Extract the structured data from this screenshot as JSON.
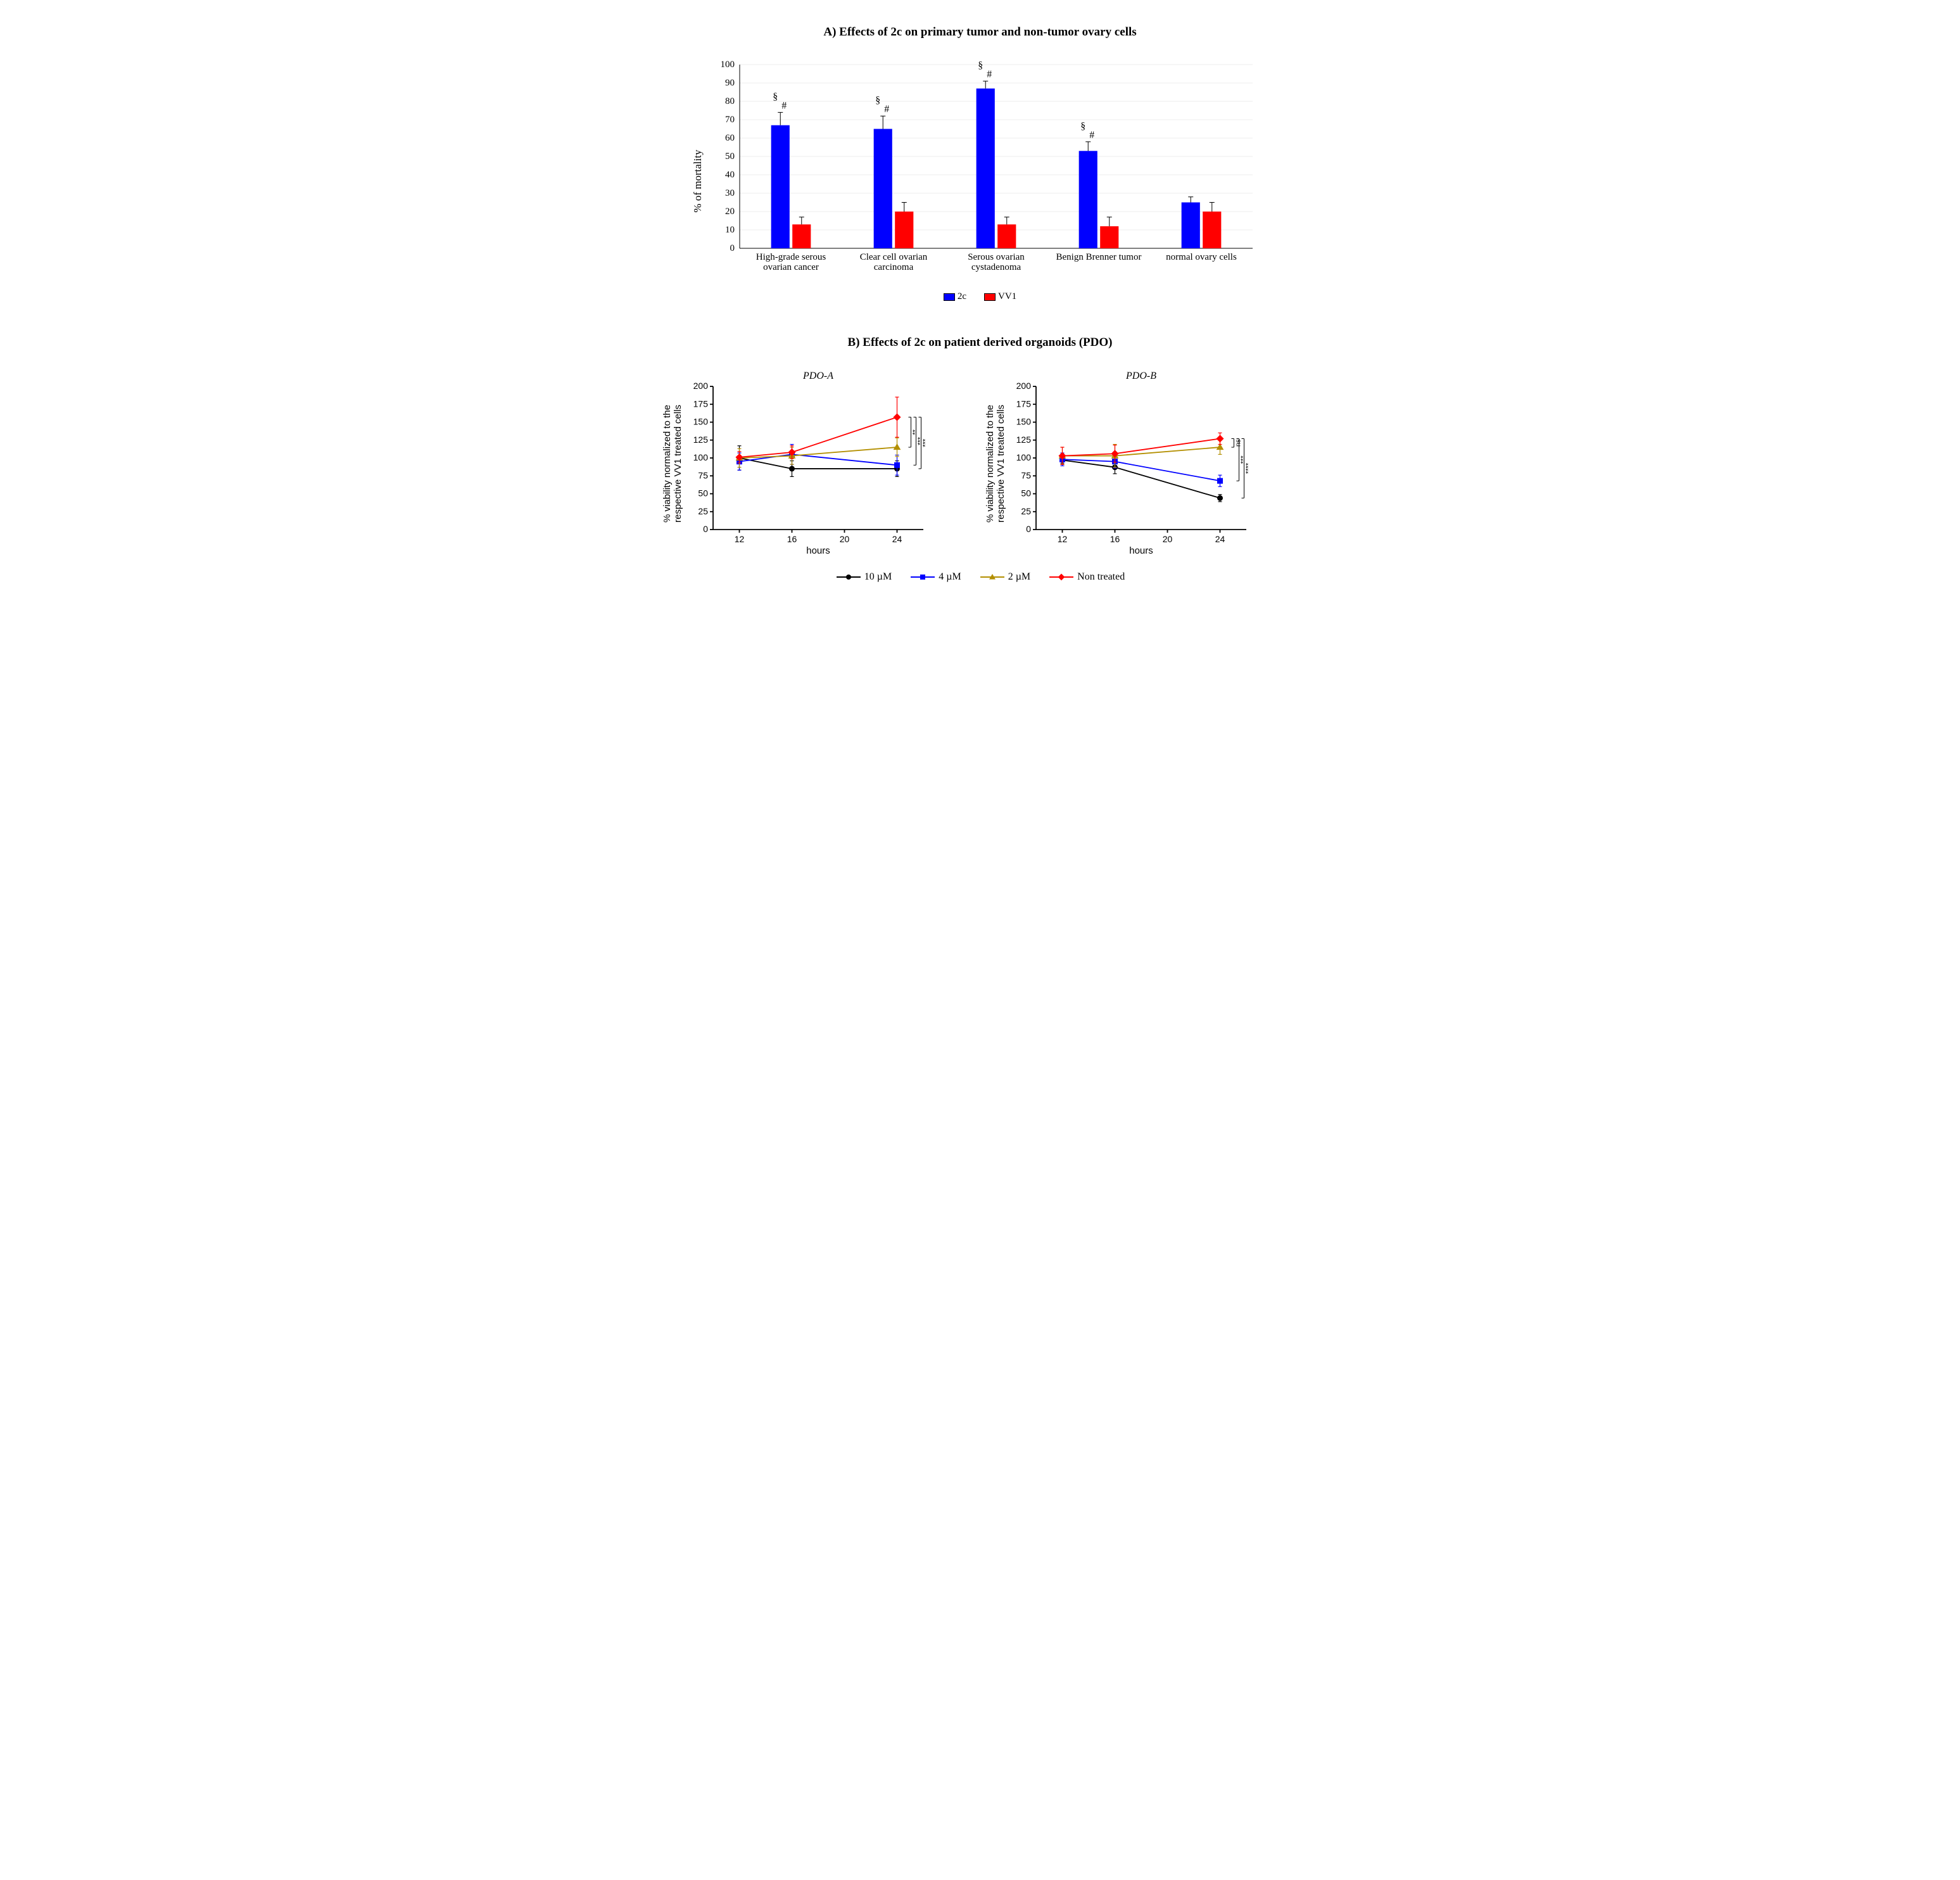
{
  "panelA": {
    "title": "A) Effects of 2c on primary tumor and non-tumor ovary cells",
    "title_fontsize": 19,
    "type": "bar",
    "ylabel": "% of mortality",
    "label_fontsize": 17,
    "tick_fontsize": 15,
    "category_fontsize": 15,
    "ylim": [
      0,
      100
    ],
    "ytick_step": 10,
    "background_color": "#ffffff",
    "grid_color": "#d9d9d9",
    "grid_on": true,
    "bar_width": 0.55,
    "categories": [
      "High-grade serous\novarian cancer",
      "Clear cell ovarian\ncarcinoma",
      "Serous ovarian\ncystadenoma",
      "Benign Brenner tumor",
      "normal ovary cells"
    ],
    "series": [
      {
        "name": "2c",
        "color": "#0000ff",
        "values": [
          67,
          65,
          87,
          53,
          25
        ],
        "errors": [
          7,
          7,
          4,
          5,
          3
        ],
        "annotations": [
          "§ #",
          "§ #",
          "§ #",
          "§ #",
          ""
        ]
      },
      {
        "name": "VV1",
        "color": "#ff0000",
        "values": [
          13,
          20,
          13,
          12,
          20
        ],
        "errors": [
          4,
          5,
          4,
          5,
          5
        ],
        "annotations": [
          "",
          "",
          "",
          "",
          ""
        ]
      }
    ],
    "legend_position": "bottom"
  },
  "panelB": {
    "title": "B) Effects of 2c on patient derived organoids (PDO)",
    "title_fontsize": 19,
    "type": "line",
    "ylabel": "% viability normalized to the\nrespective VV1 treated cells",
    "xlabel": "hours",
    "label_fontsize": 15,
    "tick_fontsize": 14,
    "ylim": [
      0,
      200
    ],
    "ytick_step": 25,
    "xlim": [
      10,
      26
    ],
    "xticks": [
      12,
      16,
      20,
      24
    ],
    "axis_color": "#000000",
    "axis_width": 1.8,
    "line_width": 1.8,
    "marker_size": 6,
    "subplots": [
      {
        "name": "PDO-A",
        "series": [
          {
            "name": "10 µM",
            "color": "#000000",
            "marker": "circle",
            "x": [
              12,
              16,
              24
            ],
            "y": [
              100,
              85,
              85
            ],
            "err": [
              17,
              11,
              11
            ]
          },
          {
            "name": "4 µM",
            "color": "#0000ff",
            "marker": "square",
            "x": [
              12,
              16,
              24
            ],
            "y": [
              95,
              105,
              90
            ],
            "err": [
              12,
              14,
              14
            ]
          },
          {
            "name": "2 µM",
            "color": "#b38f00",
            "marker": "triangle",
            "x": [
              12,
              16,
              24
            ],
            "y": [
              100,
              103,
              115
            ],
            "err": [
              13,
              12,
              13
            ]
          },
          {
            "name": "Non treated",
            "color": "#ff0000",
            "marker": "diamond",
            "x": [
              12,
              16,
              24
            ],
            "y": [
              101,
              108,
              157
            ],
            "err": [
              8,
              9,
              28
            ]
          }
        ],
        "sig_labels": [
          "**",
          "***",
          "***"
        ]
      },
      {
        "name": "PDO-B",
        "series": [
          {
            "name": "10 µM",
            "color": "#000000",
            "marker": "circle",
            "x": [
              12,
              16,
              24
            ],
            "y": [
              97,
              87,
              44
            ],
            "err": [
              5,
              9,
              5
            ]
          },
          {
            "name": "4 µM",
            "color": "#0000ff",
            "marker": "square",
            "x": [
              12,
              16,
              24
            ],
            "y": [
              98,
              95,
              68
            ],
            "err": [
              9,
              9,
              8
            ]
          },
          {
            "name": "2 µM",
            "color": "#b38f00",
            "marker": "triangle",
            "x": [
              12,
              16,
              24
            ],
            "y": [
              103,
              103,
              115
            ],
            "err": [
              12,
              16,
              10
            ]
          },
          {
            "name": "Non treated",
            "color": "#ff0000",
            "marker": "diamond",
            "x": [
              12,
              16,
              24
            ],
            "y": [
              103,
              106,
              127
            ],
            "err": [
              12,
              12,
              8
            ]
          }
        ],
        "sig_labels": [
          "ns",
          "***",
          "****"
        ]
      }
    ],
    "legend": [
      {
        "name": "10 µM",
        "color": "#000000",
        "marker": "circle"
      },
      {
        "name": "4 µM",
        "color": "#0000ff",
        "marker": "square"
      },
      {
        "name": "2 µM",
        "color": "#b38f00",
        "marker": "triangle"
      },
      {
        "name": "Non treated",
        "color": "#ff0000",
        "marker": "diamond"
      }
    ],
    "legend_fontsize": 16
  }
}
